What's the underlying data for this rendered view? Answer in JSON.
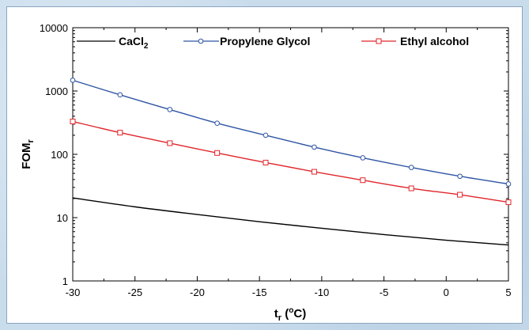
{
  "chart_data": {
    "type": "line",
    "title": "",
    "xlabel": {
      "main": "t",
      "sub": "r",
      "unit_open": " (",
      "unit_sup": "o",
      "unit_rest": "C)"
    },
    "ylabel": {
      "main": "FOM",
      "sub": "r"
    },
    "xlim": [
      -30,
      5
    ],
    "ylim": [
      1,
      10000
    ],
    "y_scale": "log",
    "grid": false,
    "legend_position": "top",
    "x_ticks": [
      "-30",
      "-25",
      "-20",
      "-15",
      "-10",
      "-5",
      "0",
      "5"
    ],
    "y_ticks": [
      "1",
      "10",
      "100",
      "1000",
      "10000"
    ],
    "series": [
      {
        "name": "CaCl",
        "name_sub": "2",
        "color": "#000000",
        "marker": "none",
        "x": [
          -30,
          -25,
          -20,
          -15,
          -10,
          -5,
          0,
          5
        ],
        "y": [
          20.5,
          14.8,
          11.2,
          8.6,
          6.8,
          5.4,
          4.4,
          3.7
        ]
      },
      {
        "name": "Propylene Glycol",
        "color": "#2f55a4",
        "marker": "circle",
        "x": [
          -30,
          -26.2,
          -22.2,
          -18.4,
          -14.5,
          -10.6,
          -6.7,
          -2.8,
          1.1,
          5
        ],
        "y": [
          1480,
          870,
          510,
          310,
          200,
          130,
          88,
          62,
          45,
          34
        ]
      },
      {
        "name": "Ethyl alcohol",
        "color": "#e0262b",
        "marker": "square",
        "x": [
          -30,
          -26.2,
          -22.2,
          -18.4,
          -14.5,
          -10.6,
          -6.7,
          -2.8,
          1.1,
          5
        ],
        "y": [
          330,
          220,
          150,
          105,
          74,
          53,
          39,
          29,
          23,
          17.5
        ]
      }
    ]
  }
}
